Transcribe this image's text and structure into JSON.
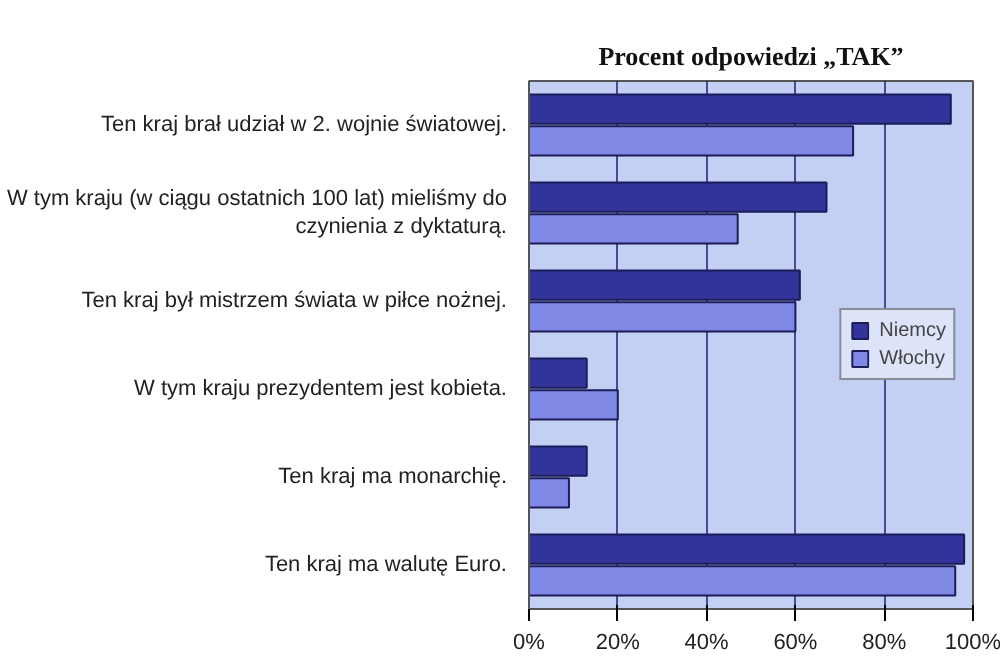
{
  "chart_data": {
    "type": "bar",
    "orientation": "horizontal",
    "title": "Procent odpowiedzi „TAK”",
    "categories": [
      "Ten kraj brał udział w 2. wojnie światowej.",
      "W tym kraju (w ciągu ostatnich 100 lat) mieliśmy do czynienia z dyktaturą.",
      "Ten kraj był mistrzem świata w piłce nożnej.",
      "W tym kraju prezydentem jest kobieta.",
      "Ten kraj ma monarchię.",
      "Ten kraj ma walutę Euro."
    ],
    "series": [
      {
        "name": "Niemcy",
        "color": "#33339c",
        "values": [
          95,
          67,
          61,
          13,
          13,
          98
        ]
      },
      {
        "name": "Włochy",
        "color": "#8088e6",
        "values": [
          73,
          47,
          60,
          20,
          9,
          96
        ]
      }
    ],
    "xlim": [
      0,
      100
    ],
    "xticks": [
      {
        "value": 0,
        "label": "0%"
      },
      {
        "value": 20,
        "label": "20%"
      },
      {
        "value": 40,
        "label": "40%"
      },
      {
        "value": 60,
        "label": "60%"
      },
      {
        "value": 80,
        "label": "80%"
      },
      {
        "value": 100,
        "label": "100%"
      }
    ],
    "grid": "x",
    "legend": "right"
  }
}
